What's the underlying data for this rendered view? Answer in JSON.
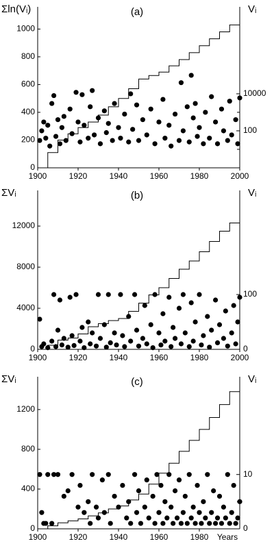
{
  "chart_data": [
    {
      "type": "scatter",
      "title": "(a)",
      "ylabel": "Σln(Vᵢ)",
      "y2label": "Vᵢ",
      "xlim": [
        1900,
        2000
      ],
      "xticks": [
        1900,
        1920,
        1940,
        1960,
        1980,
        2000
      ],
      "ylim": [
        0,
        1160
      ],
      "yticks": [
        0,
        200,
        400,
        600,
        800,
        1000
      ],
      "y2lim": [
        1,
        500000000
      ],
      "y2log": true,
      "y2ticks": [
        100,
        10000
      ],
      "y2minor_ticks": [
        10,
        1000
      ],
      "series": [
        {
          "type": "line",
          "color": "#000000",
          "x": [
            1900,
            1905,
            1910,
            1915,
            1920,
            1925,
            1930,
            1935,
            1940,
            1945,
            1950,
            1955,
            1960,
            1965,
            1970,
            1975,
            1980,
            1985,
            1990,
            1995,
            2000
          ],
          "values": [
            0,
            110,
            200,
            245,
            290,
            330,
            380,
            440,
            500,
            570,
            640,
            665,
            690,
            735,
            780,
            830,
            880,
            930,
            980,
            1030,
            1080
          ]
        },
        {
          "type": "scatter",
          "axis": "y2",
          "color": "#000000",
          "x": [
            1901,
            1902,
            1903,
            1904,
            1905,
            1906,
            1907,
            1908,
            1909,
            1910,
            1911,
            1912,
            1913,
            1914,
            1916,
            1917,
            1919,
            1920,
            1921,
            1922,
            1923,
            1925,
            1926,
            1927,
            1928,
            1930,
            1931,
            1933,
            1934,
            1935,
            1937,
            1938,
            1940,
            1941,
            1943,
            1945,
            1946,
            1947,
            1949,
            1950,
            1952,
            1954,
            1956,
            1958,
            1960,
            1962,
            1963,
            1965,
            1966,
            1968,
            1970,
            1971,
            1972,
            1974,
            1975,
            1976,
            1977,
            1978,
            1979,
            1980,
            1982,
            1983,
            1985,
            1986,
            1988,
            1989,
            1991,
            1992,
            1994,
            1995,
            1996,
            1998,
            1999,
            2000
          ],
          "values": [
            30,
            100,
            300,
            40,
            200,
            15,
            3000,
            8000,
            50,
            400,
            20,
            150,
            600,
            30,
            1500,
            70,
            12000,
            300,
            25,
            9000,
            200,
            40,
            2000,
            15000,
            60,
            500,
            20,
            1200,
            80,
            250,
            30,
            3000,
            150,
            40,
            800,
            25,
            10000,
            120,
            2500,
            30,
            400,
            60,
            1500,
            20,
            300,
            5000,
            40,
            200,
            15,
            800,
            30,
            40000,
            100,
            2000,
            25,
            100000,
            500,
            3000,
            50,
            150,
            20,
            1000,
            40,
            7000,
            300,
            20,
            1500,
            100,
            30,
            4000,
            60,
            400,
            20,
            6000
          ]
        }
      ]
    },
    {
      "type": "scatter",
      "title": "(b)",
      "ylabel": "ΣVᵢ",
      "y2label": "Vᵢ",
      "xlim": [
        1900,
        2000
      ],
      "xticks": [
        1900,
        1920,
        1940,
        1960,
        1980,
        2000
      ],
      "ylim": [
        0,
        15470
      ],
      "yticks": [
        0,
        4000,
        8000,
        12000
      ],
      "y2lim": [
        0,
        290
      ],
      "y2log": false,
      "y2ticks": [
        0,
        100
      ],
      "y2minor_ticks": [
        50
      ],
      "series": [
        {
          "type": "line",
          "color": "#000000",
          "x": [
            1900,
            1905,
            1910,
            1915,
            1920,
            1925,
            1930,
            1935,
            1940,
            1945,
            1950,
            1955,
            1960,
            1965,
            1970,
            1975,
            1980,
            1985,
            1990,
            1995,
            2000
          ],
          "values": [
            0,
            400,
            900,
            1100,
            1500,
            2200,
            2500,
            2800,
            3000,
            3700,
            4500,
            5300,
            6000,
            6900,
            7800,
            8600,
            9500,
            10500,
            11500,
            12300,
            13100
          ]
        },
        {
          "type": "scatter",
          "axis": "y2",
          "color": "#000000",
          "x": [
            1901,
            1902,
            1903,
            1905,
            1907,
            1908,
            1909,
            1910,
            1911,
            1912,
            1913,
            1915,
            1916,
            1917,
            1918,
            1919,
            1921,
            1922,
            1923,
            1925,
            1926,
            1927,
            1929,
            1930,
            1931,
            1933,
            1934,
            1935,
            1936,
            1938,
            1939,
            1941,
            1942,
            1943,
            1945,
            1946,
            1948,
            1949,
            1950,
            1952,
            1953,
            1954,
            1956,
            1957,
            1958,
            1960,
            1961,
            1962,
            1963,
            1965,
            1966,
            1967,
            1968,
            1970,
            1971,
            1972,
            1973,
            1975,
            1976,
            1977,
            1978,
            1980,
            1981,
            1982,
            1984,
            1985,
            1986,
            1988,
            1989,
            1990,
            1992,
            1993,
            1994,
            1996,
            1997,
            1998,
            1999,
            2000
          ],
          "values": [
            55,
            5,
            10,
            3,
            15,
            100,
            5,
            35,
            90,
            8,
            20,
            4,
            95,
            25,
            7,
            100,
            15,
            40,
            3,
            50,
            10,
            30,
            6,
            100,
            20,
            45,
            4,
            100,
            12,
            30,
            8,
            100,
            25,
            5,
            60,
            15,
            100,
            35,
            6,
            20,
            80,
            10,
            45,
            3,
            100,
            30,
            8,
            65,
            15,
            95,
            5,
            40,
            20,
            75,
            10,
            100,
            30,
            5,
            85,
            15,
            50,
            100,
            8,
            25,
            60,
            4,
            35,
            90,
            12,
            45,
            20,
            70,
            6,
            30,
            80,
            10,
            50,
            95
          ]
        }
      ]
    },
    {
      "type": "scatter",
      "title": "(c)",
      "ylabel": "ΣVᵢ",
      "y2label": "Vᵢ",
      "xlabel": "Years",
      "xlim": [
        1900,
        2000
      ],
      "xticks": [
        1900,
        1920,
        1940,
        1960,
        1980
      ],
      "ylim": [
        0,
        1530
      ],
      "yticks": [
        0,
        400,
        800,
        1200
      ],
      "y2lim": [
        0,
        28
      ],
      "y2log": false,
      "y2ticks": [
        0,
        10
      ],
      "y2minor_ticks": [
        5
      ],
      "series": [
        {
          "type": "line",
          "color": "#000000",
          "x": [
            1900,
            1905,
            1910,
            1915,
            1920,
            1925,
            1930,
            1935,
            1940,
            1945,
            1950,
            1955,
            1960,
            1965,
            1970,
            1975,
            1980,
            1985,
            1990,
            1995,
            2000
          ],
          "values": [
            0,
            30,
            60,
            80,
            100,
            130,
            160,
            200,
            230,
            290,
            350,
            450,
            560,
            660,
            780,
            890,
            1000,
            1120,
            1250,
            1380,
            1510
          ]
        },
        {
          "type": "scatter",
          "axis": "y2",
          "color": "#000000",
          "x": [
            1901,
            1902,
            1903,
            1904,
            1905,
            1907,
            1908,
            1910,
            1913,
            1915,
            1917,
            1920,
            1921,
            1923,
            1925,
            1926,
            1927,
            1929,
            1930,
            1932,
            1933,
            1935,
            1936,
            1938,
            1940,
            1942,
            1944,
            1945,
            1946,
            1948,
            1949,
            1950,
            1951,
            1953,
            1954,
            1955,
            1957,
            1958,
            1959,
            1960,
            1961,
            1962,
            1963,
            1964,
            1965,
            1966,
            1967,
            1968,
            1969,
            1970,
            1971,
            1972,
            1973,
            1974,
            1975,
            1976,
            1977,
            1978,
            1979,
            1980,
            1981,
            1982,
            1983,
            1984,
            1985,
            1986,
            1987,
            1988,
            1989,
            1990,
            1991,
            1992,
            1993,
            1994,
            1995,
            1996,
            1997,
            1998,
            1999,
            2000
          ],
          "values": [
            10,
            3,
            1,
            1,
            10,
            1,
            10,
            10,
            6,
            7,
            10,
            4,
            8,
            3,
            5,
            1,
            10,
            4,
            2,
            9,
            3,
            10,
            1,
            6,
            4,
            8,
            2,
            5,
            1,
            10,
            3,
            7,
            1,
            4,
            9,
            2,
            6,
            1,
            10,
            3,
            8,
            1,
            5,
            2,
            10,
            4,
            1,
            7,
            2,
            9,
            1,
            3,
            6,
            1,
            10,
            2,
            4,
            1,
            8,
            3,
            1,
            5,
            2,
            10,
            1,
            3,
            7,
            1,
            2,
            6,
            1,
            4,
            2,
            10,
            1,
            3,
            8,
            1,
            2,
            5
          ]
        }
      ]
    }
  ]
}
